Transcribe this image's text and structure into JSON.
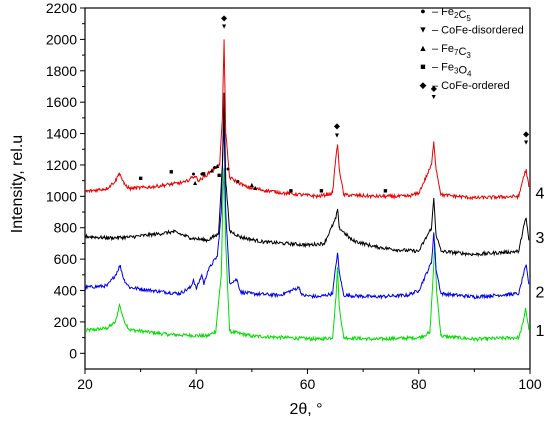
{
  "chart_data": {
    "type": "line",
    "xlabel": "2θ, °",
    "ylabel": "Intensity, rel.u",
    "xlim": [
      20,
      100
    ],
    "ylim": [
      -100,
      2200
    ],
    "xticks": [
      20,
      40,
      60,
      80,
      100
    ],
    "yticks": [
      0,
      200,
      400,
      600,
      800,
      1000,
      1200,
      1400,
      1600,
      1800,
      2000,
      2200
    ],
    "grid": false,
    "legend_position": "top-right",
    "legend": [
      {
        "symbol": "●",
        "label_text": "– Fe",
        "sub": "2",
        "label_text2": "C",
        "sub2": "5"
      },
      {
        "symbol": "▼",
        "label_text": "– CoFe-disordered",
        "sub": "",
        "label_text2": "",
        "sub2": ""
      },
      {
        "symbol": "▲",
        "label_text": "– Fe",
        "sub": "7",
        "label_text2": "C",
        "sub2": "3"
      },
      {
        "symbol": "■",
        "label_text": "–  Fe",
        "sub": "3",
        "label_text2": "O",
        "sub2": "4"
      },
      {
        "symbol": "◆",
        "label_text": "–  CoFe-ordered",
        "sub": "",
        "label_text2": "",
        "sub2": ""
      }
    ],
    "series": [
      {
        "label": "1",
        "color": "#00dd00",
        "baseline": 150,
        "label_y": 150,
        "points": [
          [
            20,
            145
          ],
          [
            24,
            160
          ],
          [
            25.5,
            200
          ],
          [
            26.2,
            310
          ],
          [
            27,
            210
          ],
          [
            28,
            150
          ],
          [
            35,
            120
          ],
          [
            42,
            110
          ],
          [
            43.5,
            140
          ],
          [
            44.5,
            500
          ],
          [
            44.8,
            1000
          ],
          [
            45,
            1180
          ],
          [
            45.3,
            700
          ],
          [
            46,
            140
          ],
          [
            50,
            110
          ],
          [
            56,
            100
          ],
          [
            62,
            90
          ],
          [
            64.5,
            100
          ],
          [
            65.1,
            350
          ],
          [
            65.4,
            550
          ],
          [
            65.7,
            300
          ],
          [
            66.5,
            100
          ],
          [
            72,
            90
          ],
          [
            80,
            100
          ],
          [
            82,
            130
          ],
          [
            82.6,
            500
          ],
          [
            82.9,
            700
          ],
          [
            83.2,
            400
          ],
          [
            84,
            110
          ],
          [
            90,
            90
          ],
          [
            98,
            100
          ],
          [
            98.8,
            200
          ],
          [
            99.2,
            290
          ],
          [
            99.8,
            150
          ]
        ]
      },
      {
        "label": "2",
        "color": "#0000ee",
        "baseline": 380,
        "label_y": 395,
        "points": [
          [
            20,
            420
          ],
          [
            24,
            430
          ],
          [
            25.5,
            500
          ],
          [
            26.3,
            560
          ],
          [
            27,
            470
          ],
          [
            28,
            420
          ],
          [
            32,
            400
          ],
          [
            37,
            380
          ],
          [
            39,
            420
          ],
          [
            39.5,
            470
          ],
          [
            40,
            410
          ],
          [
            41,
            500
          ],
          [
            41.4,
            440
          ],
          [
            42,
            520
          ],
          [
            43,
            580
          ],
          [
            43.8,
            620
          ],
          [
            44.5,
            900
          ],
          [
            44.8,
            1300
          ],
          [
            45,
            1470
          ],
          [
            45.3,
            900
          ],
          [
            46,
            450
          ],
          [
            47.3,
            470
          ],
          [
            48,
            390
          ],
          [
            50,
            380
          ],
          [
            55,
            370
          ],
          [
            58.5,
            420
          ],
          [
            59,
            370
          ],
          [
            62,
            360
          ],
          [
            64.5,
            380
          ],
          [
            65.1,
            560
          ],
          [
            65.4,
            640
          ],
          [
            65.7,
            520
          ],
          [
            66.5,
            370
          ],
          [
            72,
            360
          ],
          [
            78,
            370
          ],
          [
            80,
            400
          ],
          [
            82.3,
            580
          ],
          [
            82.7,
            770
          ],
          [
            83.1,
            540
          ],
          [
            84,
            380
          ],
          [
            90,
            360
          ],
          [
            98,
            380
          ],
          [
            98.8,
            500
          ],
          [
            99.3,
            560
          ],
          [
            99.8,
            440
          ]
        ]
      },
      {
        "label": "3",
        "color": "#000000",
        "baseline": 740,
        "label_y": 740,
        "points": [
          [
            20,
            745
          ],
          [
            24,
            735
          ],
          [
            28,
            740
          ],
          [
            33,
            760
          ],
          [
            36,
            775
          ],
          [
            39,
            735
          ],
          [
            42,
            720
          ],
          [
            44,
            760
          ],
          [
            44.7,
            1200
          ],
          [
            45,
            1660
          ],
          [
            45.3,
            1100
          ],
          [
            46,
            780
          ],
          [
            48,
            740
          ],
          [
            52,
            710
          ],
          [
            56,
            700
          ],
          [
            60,
            690
          ],
          [
            63,
            700
          ],
          [
            65.1,
            860
          ],
          [
            65.4,
            920
          ],
          [
            65.7,
            800
          ],
          [
            68,
            720
          ],
          [
            72,
            680
          ],
          [
            76,
            660
          ],
          [
            80,
            650
          ],
          [
            82.3,
            800
          ],
          [
            82.7,
            990
          ],
          [
            83.1,
            760
          ],
          [
            84,
            650
          ],
          [
            90,
            630
          ],
          [
            98,
            650
          ],
          [
            98.8,
            800
          ],
          [
            99.3,
            860
          ],
          [
            99.8,
            720
          ]
        ]
      },
      {
        "label": "4",
        "color": "#ee0000",
        "baseline": 1010,
        "label_y": 1025,
        "points": [
          [
            20,
            1030
          ],
          [
            24,
            1050
          ],
          [
            25.5,
            1100
          ],
          [
            26.2,
            1150
          ],
          [
            27,
            1080
          ],
          [
            28,
            1050
          ],
          [
            32,
            1060
          ],
          [
            36,
            1080
          ],
          [
            38,
            1090
          ],
          [
            39.7,
            1130
          ],
          [
            40.5,
            1100
          ],
          [
            42,
            1140
          ],
          [
            43,
            1170
          ],
          [
            44.2,
            1200
          ],
          [
            44.7,
            1500
          ],
          [
            45,
            2000
          ],
          [
            45.3,
            1400
          ],
          [
            46,
            1120
          ],
          [
            47.5,
            1090
          ],
          [
            49,
            1060
          ],
          [
            52,
            1040
          ],
          [
            56,
            1020
          ],
          [
            62,
            1000
          ],
          [
            64.5,
            1020
          ],
          [
            65.1,
            1250
          ],
          [
            65.4,
            1330
          ],
          [
            65.7,
            1180
          ],
          [
            66.5,
            1010
          ],
          [
            72,
            1000
          ],
          [
            78,
            1000
          ],
          [
            80,
            1020
          ],
          [
            82.3,
            1200
          ],
          [
            82.7,
            1350
          ],
          [
            83.1,
            1180
          ],
          [
            84,
            1010
          ],
          [
            90,
            990
          ],
          [
            98,
            1000
          ],
          [
            98.8,
            1120
          ],
          [
            99.3,
            1170
          ],
          [
            99.8,
            1060
          ]
        ]
      }
    ],
    "markers": [
      {
        "symbol": "■",
        "x": 30,
        "y": 1120
      },
      {
        "symbol": "■",
        "x": 35.5,
        "y": 1160
      },
      {
        "symbol": "●",
        "x": 39.5,
        "y": 1150
      },
      {
        "symbol": "▲",
        "x": 39.8,
        "y": 1090
      },
      {
        "symbol": "●",
        "x": 41,
        "y": 1150
      },
      {
        "symbol": "■",
        "x": 41.3,
        "y": 1150
      },
      {
        "symbol": "▲",
        "x": 42.8,
        "y": 1170
      },
      {
        "symbol": "●",
        "x": 43.3,
        "y": 1190
      },
      {
        "symbol": "▲",
        "x": 43.8,
        "y": 1200
      },
      {
        "symbol": "■",
        "x": 44.1,
        "y": 1140
      },
      {
        "symbol": "●",
        "x": 45.7,
        "y": 1180
      },
      {
        "symbol": "●",
        "x": 47.5,
        "y": 1100
      },
      {
        "symbol": "▲",
        "x": 50,
        "y": 1080
      },
      {
        "symbol": "▲",
        "x": 50.6,
        "y": 1060
      },
      {
        "symbol": "■",
        "x": 57,
        "y": 1040
      },
      {
        "symbol": "■",
        "x": 62.5,
        "y": 1040
      },
      {
        "symbol": "■",
        "x": 74,
        "y": 1040
      },
      {
        "symbol": "◆",
        "x": 45,
        "y": 2140
      },
      {
        "symbol": "▼",
        "x": 45,
        "y": 2090
      },
      {
        "symbol": "◆",
        "x": 65.3,
        "y": 1450
      },
      {
        "symbol": "▼",
        "x": 65.3,
        "y": 1395
      },
      {
        "symbol": "◆",
        "x": 82.7,
        "y": 1690
      },
      {
        "symbol": "▼",
        "x": 82.7,
        "y": 1640
      },
      {
        "symbol": "◆",
        "x": 99.3,
        "y": 1400
      },
      {
        "symbol": "▼",
        "x": 99.3,
        "y": 1350
      }
    ]
  }
}
